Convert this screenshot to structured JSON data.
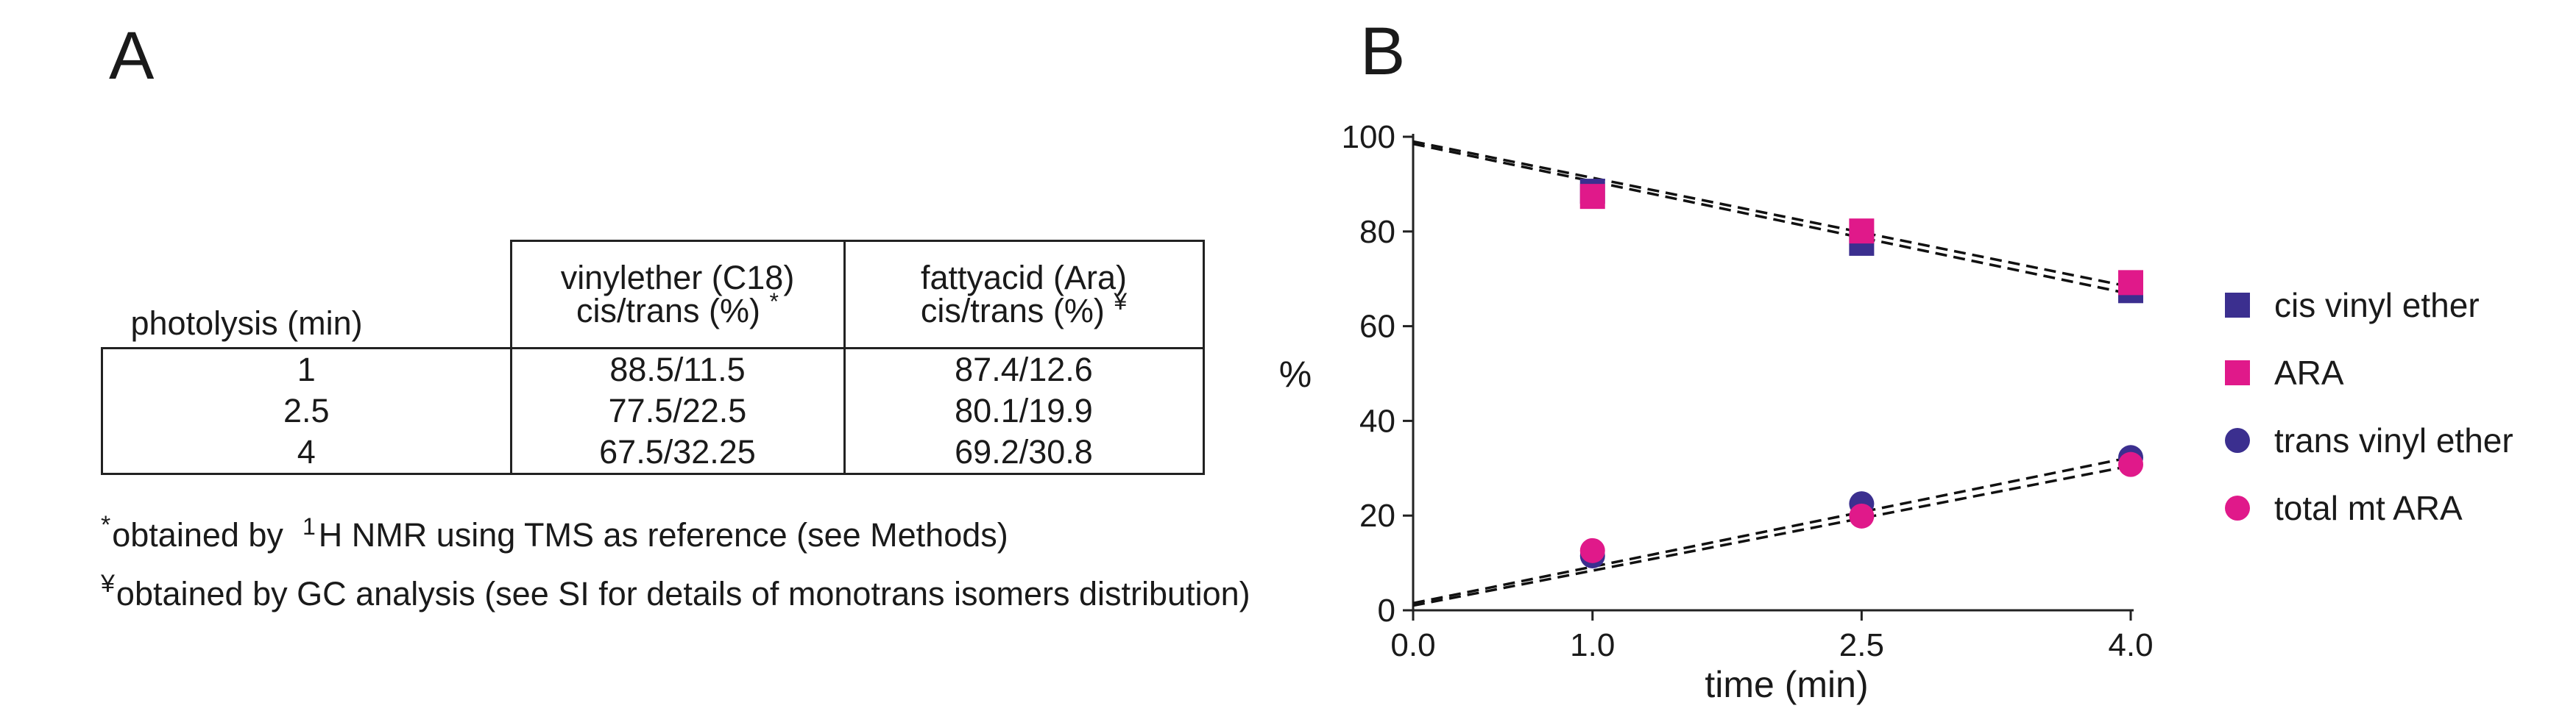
{
  "panels": {
    "a_letter": "A",
    "b_letter": "B"
  },
  "table": {
    "headers": {
      "col1": "photolysis (min)",
      "col2_line1": "vinylether (C18)",
      "col2_line2": "cis/trans (%)",
      "col2_mark": "*",
      "col3_line1": "fattyacid (Ara)",
      "col3_line2": "cis/trans (%)",
      "col3_mark": "¥"
    },
    "rows": [
      {
        "time": "1",
        "vinyl": "88.5/11.5",
        "fatty": "87.4/12.6"
      },
      {
        "time": "2.5",
        "vinyl": "77.5/22.5",
        "fatty": "80.1/19.9"
      },
      {
        "time": "4",
        "vinyl": "67.5/32.25",
        "fatty": "69.2/30.8"
      }
    ]
  },
  "footnotes": {
    "fn1_symbol": "*",
    "fn1_prefix": "obtained by",
    "fn1_sup": "1",
    "fn1_rest": "H NMR using TMS as reference (see Methods)",
    "fn2_symbol": "¥",
    "fn2_text": "obtained by GC analysis (see  SI for details of monotrans isomers distribution)"
  },
  "chart_data": {
    "type": "scatter",
    "title": "",
    "xlabel": "time (min)",
    "ylabel": "%",
    "xlim": [
      0,
      4
    ],
    "ylim": [
      0,
      100
    ],
    "x_ticks": [
      0.0,
      1.0,
      2.5,
      4.0
    ],
    "x_tick_labels": [
      "0.0",
      "1.0",
      "2.5",
      "4.0"
    ],
    "y_ticks": [
      0,
      20,
      40,
      60,
      80,
      100
    ],
    "y_tick_labels": [
      "0",
      "20",
      "40",
      "60",
      "80",
      "100"
    ],
    "legend_position": "right",
    "series": [
      {
        "name": "cis vinyl ether",
        "marker": "square",
        "color": "#3b2f8f",
        "x": [
          1.0,
          2.5,
          4.0
        ],
        "values": [
          88.5,
          77.5,
          67.5
        ],
        "fit": [
          [
            0.0,
            98.5
          ],
          [
            4.0,
            66.8
          ]
        ]
      },
      {
        "name": "ARA",
        "marker": "square",
        "color": "#e0198a",
        "x": [
          1.0,
          2.5,
          4.0
        ],
        "values": [
          87.4,
          80.1,
          69.2
        ],
        "fit": [
          [
            0.0,
            99.0
          ],
          [
            4.0,
            68.3
          ]
        ]
      },
      {
        "name": "trans vinyl ether",
        "marker": "circle",
        "color": "#3b2f8f",
        "x": [
          1.0,
          2.5,
          4.0
        ],
        "values": [
          11.5,
          22.5,
          32.25
        ],
        "fit": [
          [
            0.0,
            1.5
          ],
          [
            4.0,
            32.3
          ]
        ]
      },
      {
        "name": "total mt ARA",
        "marker": "circle",
        "color": "#e0198a",
        "x": [
          1.0,
          2.5,
          4.0
        ],
        "values": [
          12.6,
          19.9,
          30.8
        ],
        "fit": [
          [
            0.0,
            1.0
          ],
          [
            4.0,
            30.5
          ]
        ]
      }
    ]
  }
}
